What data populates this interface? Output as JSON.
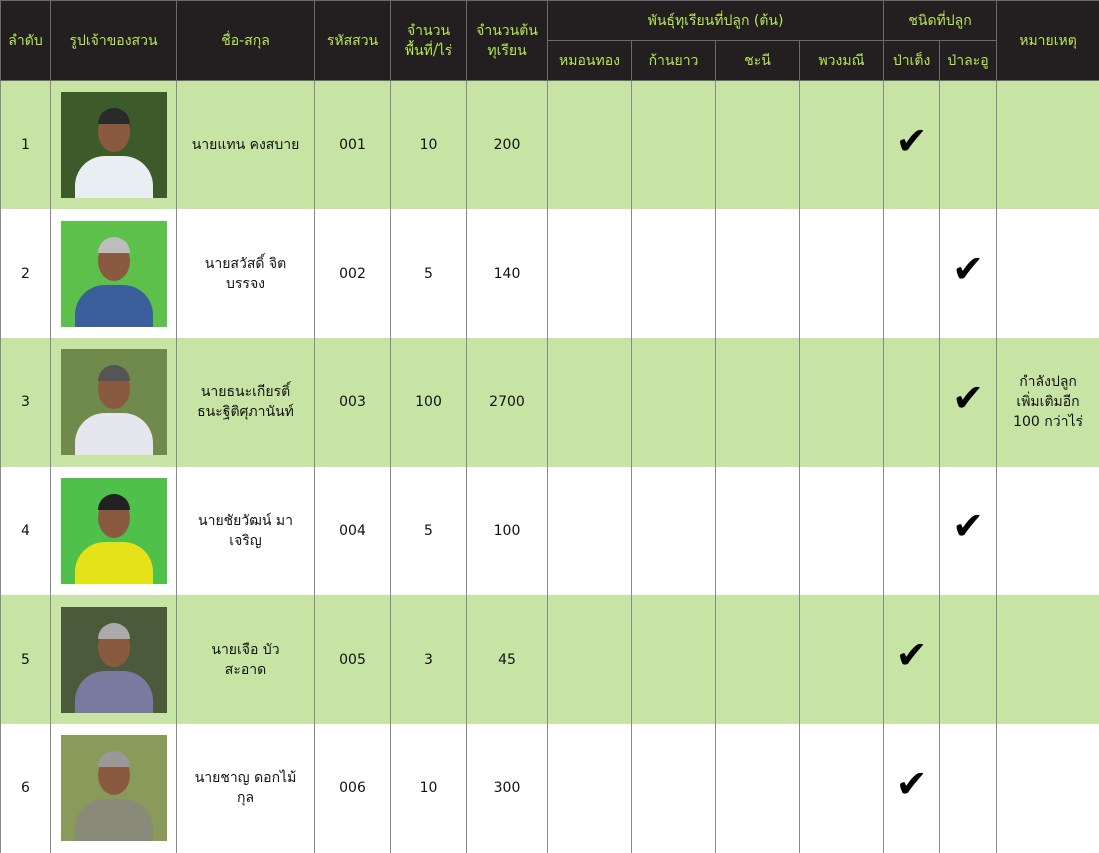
{
  "headers": {
    "no": "ลำดับ",
    "photo": "รูปเจ้าของสวน",
    "name": "ชื่อ-สกุล",
    "code": "รหัสสวน",
    "area": "จำนวนพื้นที่/ไร่",
    "trees": "จำนวนต้นทุเรียน",
    "varieties": "พันธุ์ทุเรียนที่ปลูก (ต้น)",
    "monthong": "หมอนทอง",
    "kanyao": "ก้านยาว",
    "chani": "ชะนี",
    "puangmanee": "พวงมณี",
    "type": "ชนิดที่ปลูก",
    "pateng": "ป่าเต็ง",
    "palaoo": "ป่าละอู",
    "remark": "หมายเหตุ"
  },
  "colors": {
    "header_bg": "#231f20",
    "header_text": "#b5e655",
    "row_green": "#c8e4a4"
  },
  "check_icon": "check-icon",
  "rows": [
    {
      "no": "1",
      "name": "นายแทน คงสบาย",
      "code": "001",
      "area": "10",
      "trees": "200",
      "pateng": true,
      "palaoo": false,
      "remark": "",
      "photo": {
        "bg": "#3d5a2a",
        "hair": "#2a2a2a",
        "shirt": "#e8eef2"
      }
    },
    {
      "no": "2",
      "name": "นายสวัสดิ์ จิตบรรจง",
      "code": "002",
      "area": "5",
      "trees": "140",
      "pateng": false,
      "palaoo": true,
      "remark": "",
      "photo": {
        "bg": "#5cc04a",
        "hair": "#bdbdbd",
        "shirt": "#3a5f9a"
      }
    },
    {
      "no": "3",
      "name": "นายธนะเกียรติ์ ธนะฐิติศุภานันท์",
      "code": "003",
      "area": "100",
      "trees": "2700",
      "pateng": false,
      "palaoo": true,
      "remark": "กำลังปลูก เพิ่มเติมอีก 100 กว่าไร่",
      "photo": {
        "bg": "#6f8a4a",
        "hair": "#555",
        "shirt": "#e6e6ee"
      }
    },
    {
      "no": "4",
      "name": "นายชัยวัฒน์ มาเจริญ",
      "code": "004",
      "area": "5",
      "trees": "100",
      "pateng": false,
      "palaoo": true,
      "remark": "",
      "photo": {
        "bg": "#4fc04a",
        "hair": "#222",
        "shirt": "#e6e21a"
      }
    },
    {
      "no": "5",
      "name": "นายเจือ บัวสะอาด",
      "code": "005",
      "area": "3",
      "trees": "45",
      "pateng": true,
      "palaoo": false,
      "remark": "",
      "photo": {
        "bg": "#4a5a3a",
        "hair": "#aaa",
        "shirt": "#7a7aa0"
      }
    },
    {
      "no": "6",
      "name": "นายชาญ ดอกไม้กุล",
      "code": "006",
      "area": "10",
      "trees": "300",
      "pateng": true,
      "palaoo": false,
      "remark": "",
      "photo": {
        "bg": "#8a9a5a",
        "hair": "#999",
        "shirt": "#8a8a7a"
      }
    }
  ]
}
